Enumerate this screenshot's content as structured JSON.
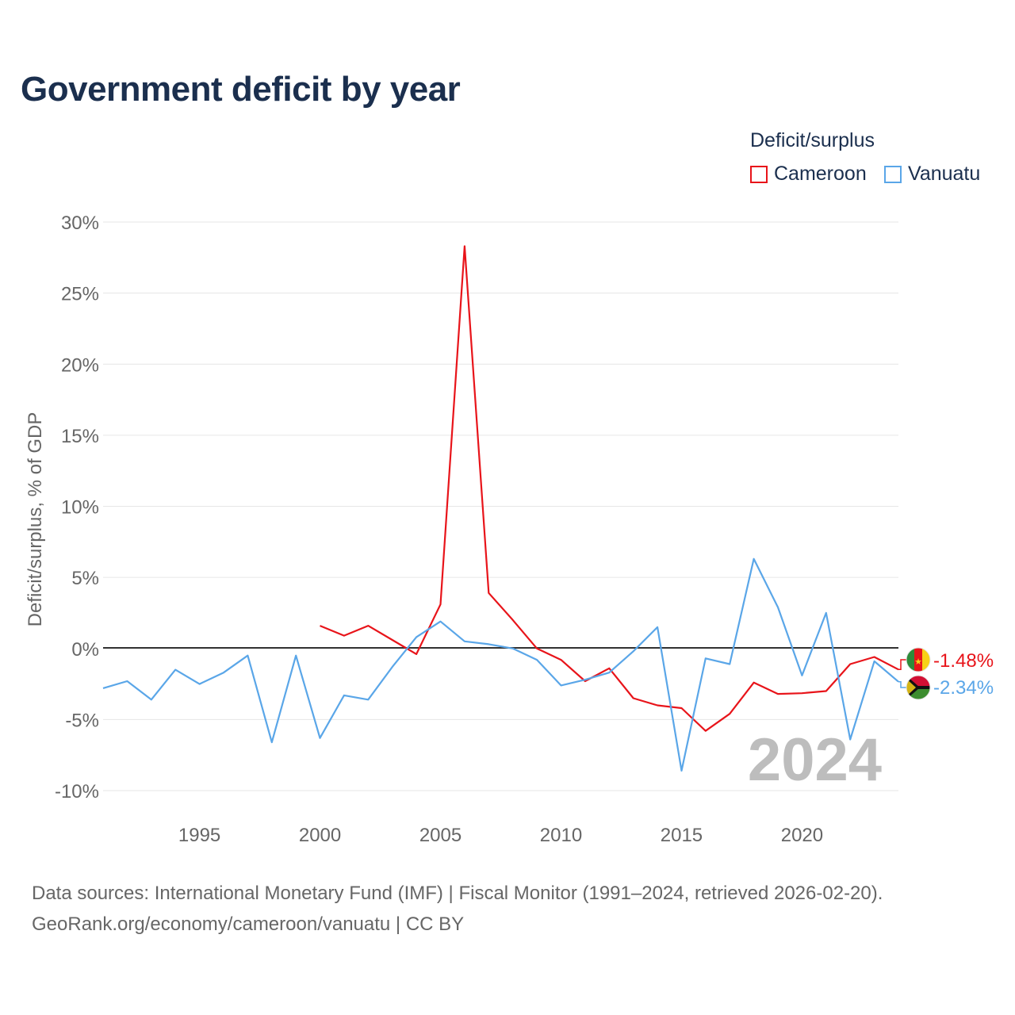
{
  "title": "Government deficit by year",
  "legend": {
    "title": "Deficit/surplus",
    "items": [
      {
        "label": "Cameroon",
        "color": "#e8141a"
      },
      {
        "label": "Vanuatu",
        "color": "#5aa6e8"
      }
    ]
  },
  "year_watermark": "2024",
  "footer": {
    "source": "Data sources: International Monetary Fund (IMF) | Fiscal Monitor (1991–2024, retrieved 2026-02-20).",
    "credit": "GeoRank.org/economy/cameroon/vanuatu | CC BY"
  },
  "chart_data": {
    "type": "line",
    "title": "Government deficit by year",
    "xlabel": "",
    "ylabel": "Deficit/surplus, % of GDP",
    "xlim": [
      1991,
      2024
    ],
    "ylim": [
      -10,
      30
    ],
    "yticks": [
      -10,
      -5,
      0,
      5,
      10,
      15,
      20,
      25,
      30
    ],
    "ytick_labels": [
      "-10%",
      "-5%",
      "0%",
      "5%",
      "10%",
      "15%",
      "20%",
      "25%",
      "30%"
    ],
    "xticks": [
      1995,
      2000,
      2005,
      2010,
      2015,
      2020
    ],
    "xtick_labels": [
      "1995",
      "2000",
      "2005",
      "2010",
      "2015",
      "2020"
    ],
    "grid": true,
    "series": [
      {
        "name": "Cameroon",
        "color": "#e8141a",
        "end_label": "-1.48%",
        "x": [
          2000,
          2001,
          2002,
          2003,
          2004,
          2005,
          2006,
          2007,
          2008,
          2009,
          2010,
          2011,
          2012,
          2013,
          2014,
          2015,
          2016,
          2017,
          2018,
          2019,
          2020,
          2021,
          2022,
          2023,
          2024
        ],
        "y": [
          1.6,
          0.9,
          1.6,
          0.6,
          -0.4,
          3.1,
          28.3,
          3.9,
          2.0,
          0.0,
          -0.8,
          -2.3,
          -1.4,
          -3.5,
          -4.0,
          -4.2,
          -5.8,
          -4.6,
          -2.4,
          -3.2,
          -3.15,
          -3.0,
          -1.1,
          -0.6,
          -1.48
        ]
      },
      {
        "name": "Vanuatu",
        "color": "#5aa6e8",
        "end_label": "-2.34%",
        "x": [
          1991,
          1992,
          1993,
          1994,
          1995,
          1996,
          1997,
          1998,
          1999,
          2000,
          2001,
          2002,
          2003,
          2004,
          2005,
          2006,
          2007,
          2008,
          2009,
          2010,
          2011,
          2012,
          2013,
          2014,
          2015,
          2016,
          2017,
          2018,
          2019,
          2020,
          2021,
          2022,
          2023,
          2024
        ],
        "y": [
          -2.8,
          -2.3,
          -3.6,
          -1.5,
          -2.5,
          -1.7,
          -0.5,
          -6.6,
          -0.5,
          -6.3,
          -3.3,
          -3.6,
          -1.3,
          0.8,
          1.9,
          0.5,
          0.3,
          0.0,
          -0.8,
          -2.6,
          -2.2,
          -1.7,
          -0.2,
          1.5,
          -8.6,
          -0.7,
          -1.1,
          6.3,
          2.9,
          -1.9,
          2.5,
          -6.4,
          -0.9,
          -2.34
        ]
      }
    ]
  }
}
